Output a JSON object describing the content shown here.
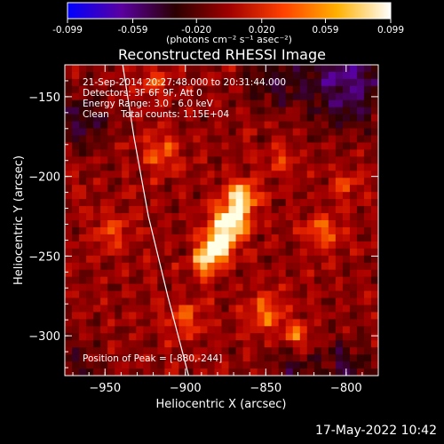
{
  "chart_data": {
    "type": "heatmap",
    "title": "Reconstructed RHESSI Image",
    "xlabel": "Heliocentric X (arcsec)",
    "ylabel": "Heliocentric Y (arcsec)",
    "xlim": [
      -975,
      -780
    ],
    "ylim": [
      -325,
      -130
    ],
    "x_ticks": [
      -950,
      -900,
      -850,
      -800
    ],
    "y_ticks": [
      -150,
      -200,
      -250,
      -300
    ],
    "colorbar": {
      "range": [
        -0.099,
        0.099
      ],
      "tick_values": [
        -0.099,
        -0.059,
        -0.02,
        0.02,
        0.059,
        0.099
      ],
      "tick_labels": [
        "-0.099",
        "-0.059",
        "-0.020",
        "0.020",
        "0.059",
        "0.099"
      ],
      "unit_label": "(photons cm⁻² s⁻¹ asec⁻²)",
      "colors": [
        "#0000ff",
        "#5a00a0",
        "#2a0000",
        "#a00000",
        "#ff4000",
        "#ffb000",
        "#ffffff"
      ]
    },
    "annotations": [
      "21-Sep-2014 20:27:48.000 to 20:31:44.000",
      "Detectors: 3F 6F 9F, Att 0",
      "Energy Range: 3.0 - 6.0 keV",
      "Clean    Total counts: 1.15E+04"
    ],
    "peak_label": "Position of Peak = [-880,-244]",
    "peak": {
      "x": -880,
      "y": -244,
      "value": 0.099
    },
    "sources": [
      {
        "x": -880,
        "y": -244,
        "value": 0.099,
        "sigma": 7
      },
      {
        "x": -872,
        "y": -228,
        "value": 0.09,
        "sigma": 8
      },
      {
        "x": -865,
        "y": -212,
        "value": 0.075,
        "sigma": 7
      },
      {
        "x": -888,
        "y": -255,
        "value": 0.06,
        "sigma": 6
      },
      {
        "x": -850,
        "y": -285,
        "value": 0.045,
        "sigma": 8
      },
      {
        "x": -830,
        "y": -300,
        "value": 0.05,
        "sigma": 6
      },
      {
        "x": -815,
        "y": -235,
        "value": 0.045,
        "sigma": 8
      },
      {
        "x": -915,
        "y": -185,
        "value": 0.04,
        "sigma": 9
      },
      {
        "x": -945,
        "y": -235,
        "value": 0.035,
        "sigma": 9
      },
      {
        "x": -900,
        "y": -290,
        "value": 0.035,
        "sigma": 9
      },
      {
        "x": -920,
        "y": -140,
        "value": 0.04,
        "sigma": 6
      },
      {
        "x": -800,
        "y": -205,
        "value": 0.04,
        "sigma": 6
      },
      {
        "x": -840,
        "y": -190,
        "value": 0.03,
        "sigma": 7
      }
    ],
    "negative_regions": [
      {
        "x": -800,
        "y": -140,
        "value": -0.06,
        "sigma": 20
      },
      {
        "x": -965,
        "y": -165,
        "value": -0.04,
        "sigma": 12
      },
      {
        "x": -845,
        "y": -140,
        "value": -0.035,
        "sigma": 12
      },
      {
        "x": -800,
        "y": -320,
        "value": -0.04,
        "sigma": 12
      },
      {
        "x": -968,
        "y": -320,
        "value": -0.03,
        "sigma": 10
      },
      {
        "x": -835,
        "y": -320,
        "value": -0.03,
        "sigma": 10
      }
    ],
    "limb_curve": [
      [
        -939,
        -130
      ],
      [
        -932,
        -175
      ],
      [
        -923,
        -225
      ],
      [
        -911,
        -275
      ],
      [
        -898,
        -325
      ]
    ],
    "grid": false
  },
  "footer": {
    "timestamp": "17-May-2022 10:42"
  }
}
